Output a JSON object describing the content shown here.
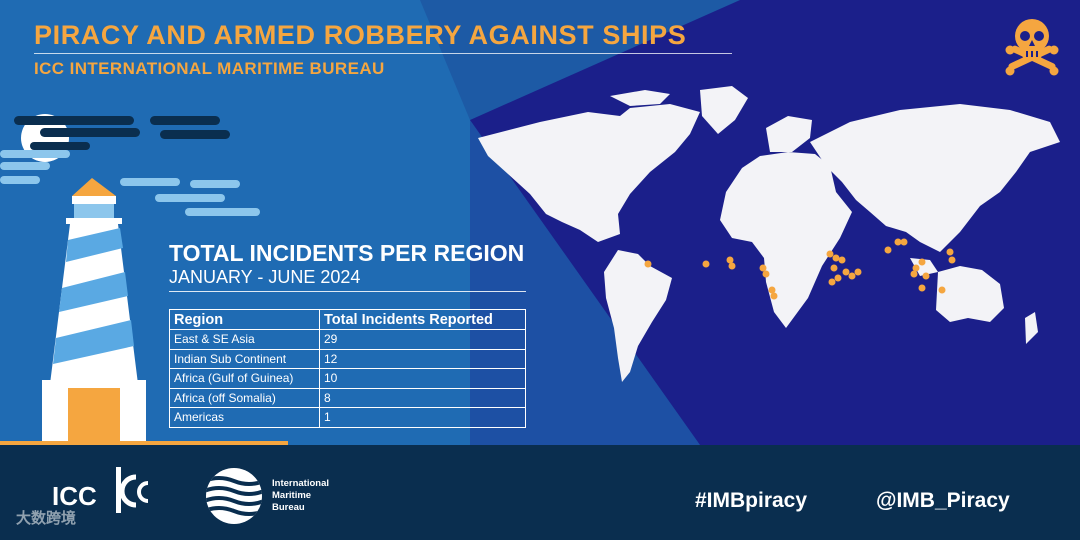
{
  "header": {
    "title": "PIRACY AND ARMED ROBBERY AGAINST SHIPS",
    "subtitle": "ICC INTERNATIONAL MARITIME BUREAU"
  },
  "section": {
    "title": "TOTAL INCIDENTS PER REGION",
    "period": "JANUARY - JUNE 2024"
  },
  "table": {
    "headers": [
      "Region",
      "Total Incidents Reported"
    ],
    "rows": [
      {
        "region": "East & SE Asia",
        "count": "29"
      },
      {
        "region": "Indian Sub Continent",
        "count": "12"
      },
      {
        "region": "Africa (Gulf of Guinea)",
        "count": "10"
      },
      {
        "region": "Africa (off Somalia)",
        "count": "8"
      },
      {
        "region": "Americas",
        "count": "1"
      }
    ]
  },
  "footer": {
    "icc_text": "ICC",
    "watermark": "大数跨境",
    "imb_name": [
      "International",
      "Maritime",
      "Bureau"
    ],
    "hashtag": "#IMBpiracy",
    "handle": "@IMB_Piracy"
  },
  "colors": {
    "accent": "#f5a640",
    "background_dark": "#1b1f8a",
    "background_light": "#1f6bb3",
    "footer": "#0a2e4f"
  },
  "icons": [
    "skull-crossbones-icon",
    "lighthouse-illustration",
    "world-map",
    "icc-logo",
    "imb-logo"
  ]
}
